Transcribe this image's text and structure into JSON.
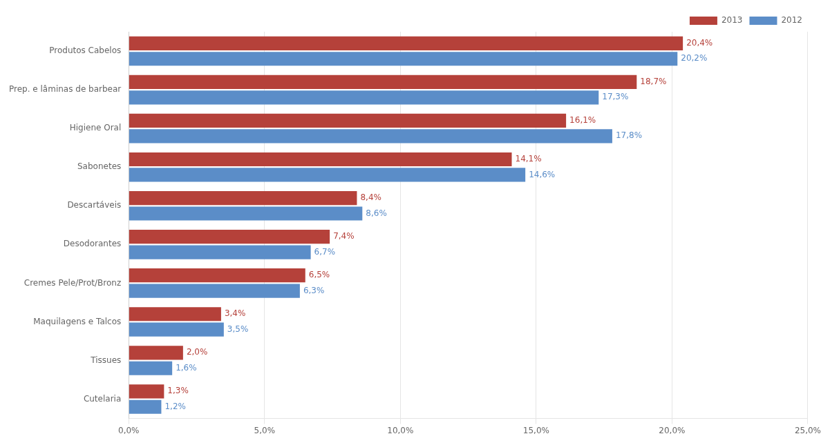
{
  "chart_data": {
    "type": "bar",
    "orientation": "horizontal",
    "categories": [
      "Produtos Cabelos",
      "Prep. e lâminas de barbear",
      "Higiene Oral",
      "Sabonetes",
      "Descartáveis",
      "Desodorantes",
      "Cremes Pele/Prot/Bronz",
      "Maquilagens e Talcos",
      "Tissues",
      "Cutelaria"
    ],
    "series": [
      {
        "name": "2013",
        "color": "#b5413a",
        "values": [
          20.4,
          18.7,
          16.1,
          14.1,
          8.4,
          7.4,
          6.5,
          3.4,
          2.0,
          1.3
        ],
        "value_labels": [
          "20,4%",
          "18,7%",
          "16,1%",
          "14,1%",
          "8,4%",
          "7,4%",
          "6,5%",
          "3,4%",
          "2,0%",
          "1,3%"
        ]
      },
      {
        "name": "2012",
        "color": "#5b8dc8",
        "values": [
          20.2,
          17.3,
          17.8,
          14.6,
          8.6,
          6.7,
          6.3,
          3.5,
          1.6,
          1.2
        ],
        "value_labels": [
          "20,2%",
          "17,3%",
          "17,8%",
          "14,6%",
          "8,6%",
          "6,7%",
          "6,3%",
          "3,5%",
          "1,6%",
          "1,2%"
        ]
      }
    ],
    "xlim": [
      0,
      25.0
    ],
    "xticks": [
      {
        "value": 0,
        "label": "0,0%"
      },
      {
        "value": 5.0,
        "label": "5,0%"
      },
      {
        "value": 10.0,
        "label": "10,0%"
      },
      {
        "value": 15.0,
        "label": "15,0%"
      },
      {
        "value": 20.0,
        "label": "20,0%"
      },
      {
        "value": 25.0,
        "label": "25,0%"
      }
    ],
    "grid": true,
    "legend": "upper right",
    "data_labels": true
  }
}
